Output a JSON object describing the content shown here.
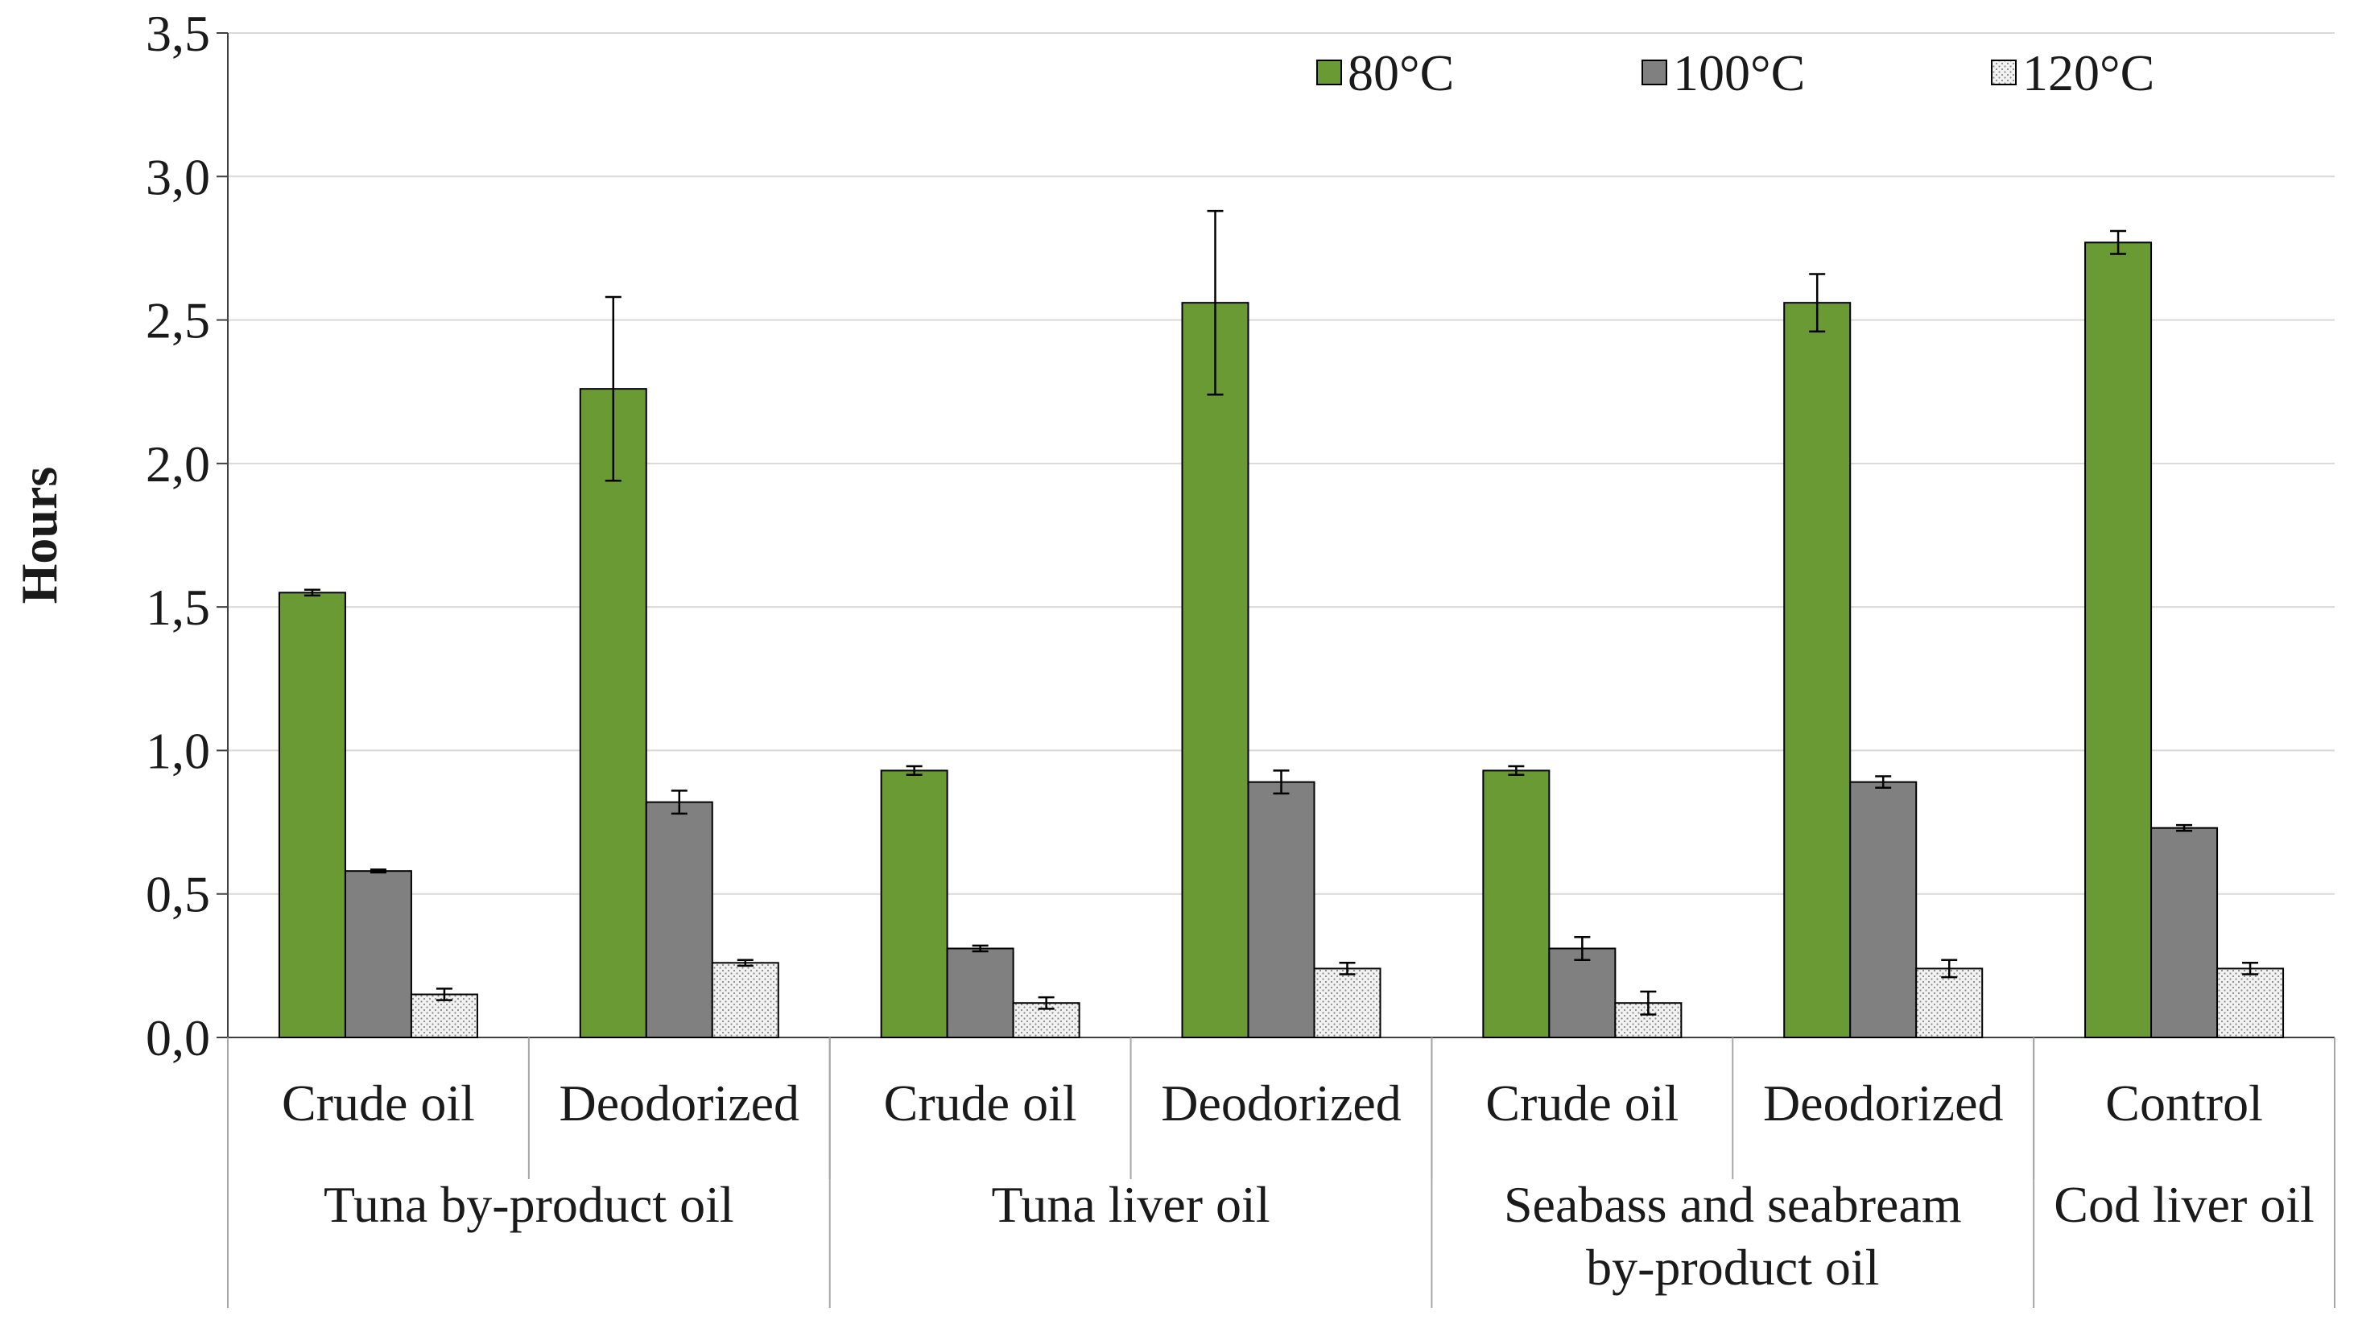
{
  "chart_data": {
    "type": "bar",
    "title": "",
    "xlabel": "",
    "ylabel": "Hours",
    "ylim": [
      0,
      3.5
    ],
    "yticks": [
      "0,0",
      "0,5",
      "1,0",
      "1,5",
      "2,0",
      "2,5",
      "3,0",
      "3,5"
    ],
    "grid": true,
    "legend_position": "top-right",
    "categories": [
      "Crude oil",
      "Deodorized",
      "Crude oil",
      "Deodorized",
      "Crude oil",
      "Deodorized",
      "Control"
    ],
    "groups": [
      {
        "lines": [
          "Tuna by-product oil"
        ],
        "span": 2
      },
      {
        "lines": [
          "Tuna liver oil"
        ],
        "span": 2
      },
      {
        "lines": [
          "Seabass and seabream",
          "by-product oil"
        ],
        "span": 2
      },
      {
        "lines": [
          "Cod liver oil"
        ],
        "span": 1
      }
    ],
    "series": [
      {
        "name": "80°C",
        "color": "#6a9a33",
        "pattern": "solid",
        "values": [
          1.55,
          2.26,
          0.93,
          2.56,
          0.93,
          2.56,
          2.77
        ],
        "errors": [
          0.01,
          0.32,
          0.015,
          0.32,
          0.015,
          0.1,
          0.04
        ]
      },
      {
        "name": "100°C",
        "color": "#808080",
        "pattern": "solid",
        "values": [
          0.58,
          0.82,
          0.31,
          0.89,
          0.31,
          0.89,
          0.73
        ],
        "errors": [
          0.005,
          0.04,
          0.01,
          0.04,
          0.04,
          0.02,
          0.01
        ]
      },
      {
        "name": "120°C",
        "color": "#ececec",
        "pattern": "dotted",
        "values": [
          0.15,
          0.26,
          0.12,
          0.24,
          0.12,
          0.24,
          0.24
        ],
        "errors": [
          0.02,
          0.01,
          0.02,
          0.02,
          0.04,
          0.03,
          0.02
        ]
      }
    ]
  }
}
